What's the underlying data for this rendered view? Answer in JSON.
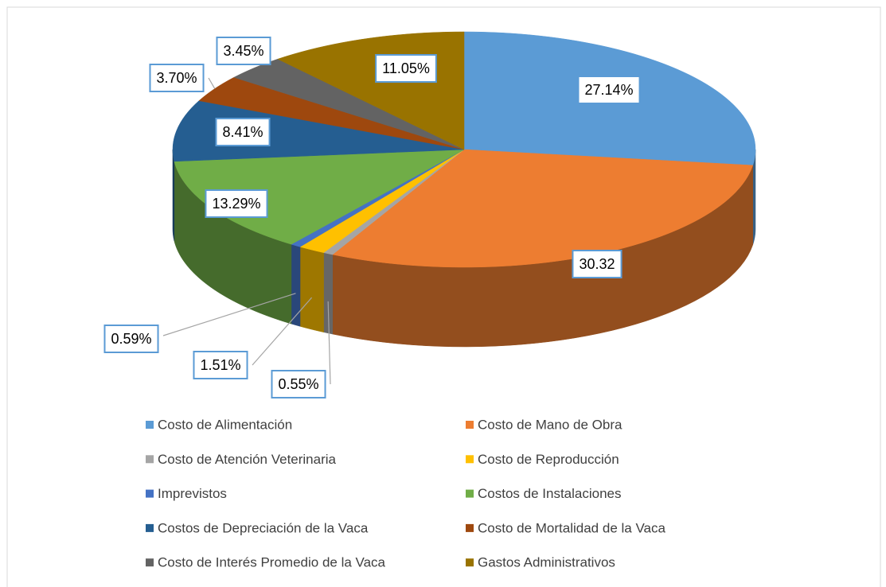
{
  "chart_data": {
    "type": "pie",
    "categories": [
      "Costo de Alimentación",
      "Costo de Mano de Obra",
      "Costo de Atención Veterinaria",
      "Costo de Reproducción",
      "Imprevistos",
      "Costos de Instalaciones",
      "Costos de Depreciación de la Vaca",
      "Costo de Mortalidad de la Vaca",
      "Costo de Interés Promedio de la Vaca",
      "Gastos Administrativos"
    ],
    "values": [
      27.14,
      30.32,
      0.55,
      1.51,
      0.59,
      13.29,
      8.41,
      3.7,
      3.45,
      11.05
    ],
    "value_labels": [
      "27.14%",
      "30.32",
      "0.55%",
      "1.51%",
      "0.59%",
      "13.29%",
      "8.41%",
      "3.70%",
      "3.45%",
      "11.05%"
    ],
    "colors": [
      "#5b9bd5",
      "#ed7d31",
      "#a5a5a5",
      "#ffc000",
      "#4472c4",
      "#70ad47",
      "#255e91",
      "#9e480e",
      "#636363",
      "#997300"
    ],
    "legend": "bottom"
  }
}
